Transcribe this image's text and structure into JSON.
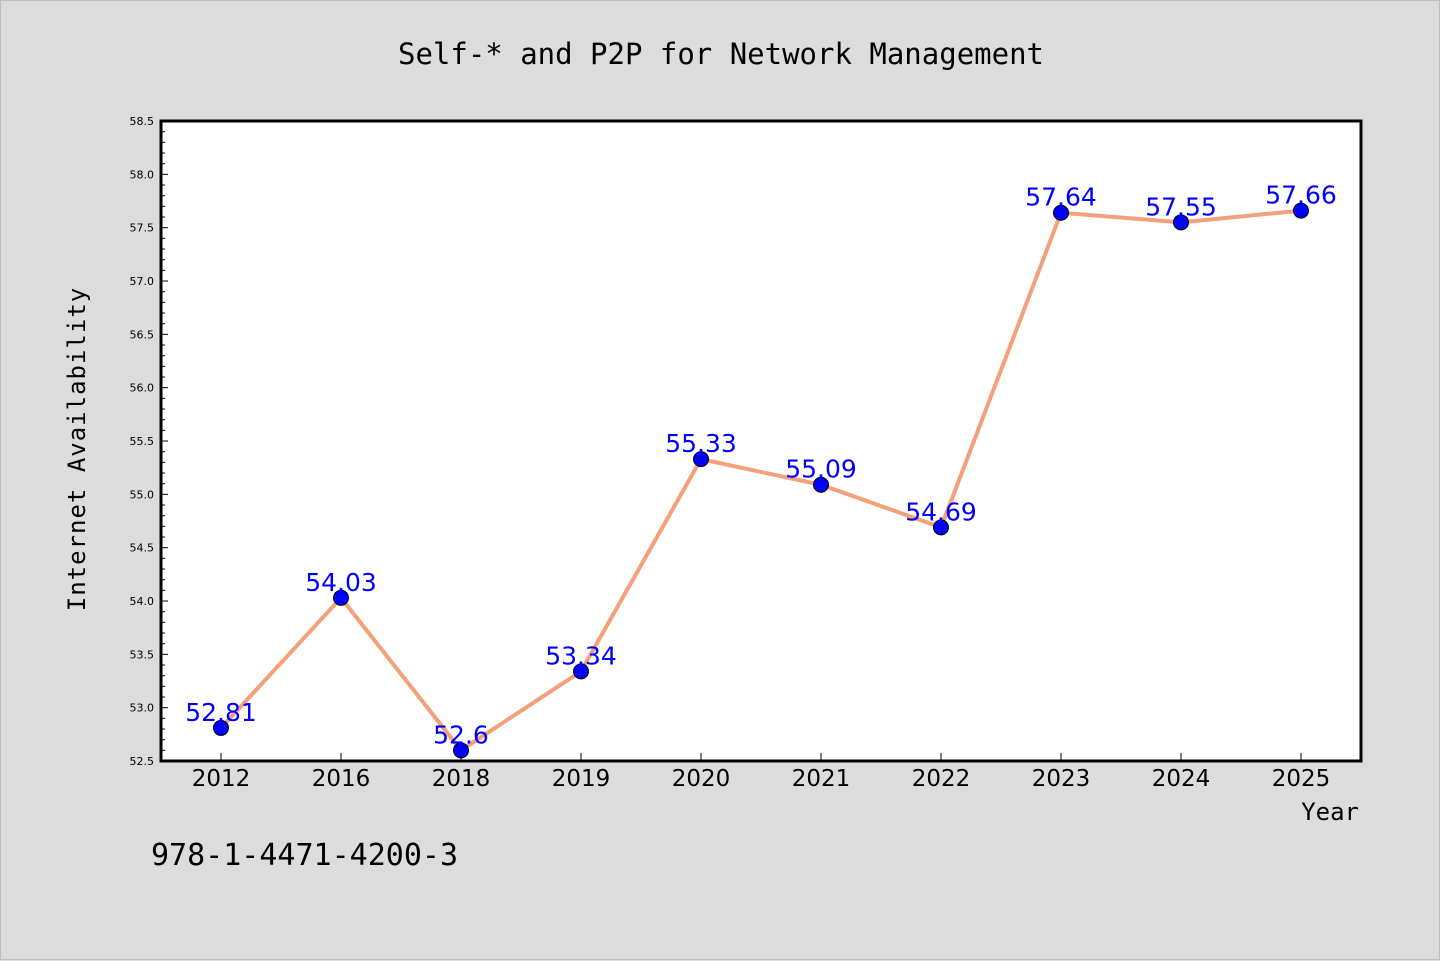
{
  "footnote": "978-1-4471-4200-3",
  "chart_data": {
    "type": "line",
    "title": "Self-* and P2P for Network Management",
    "xlabel": "Year",
    "ylabel": "Internet Availability",
    "categories": [
      "2012",
      "2016",
      "2018",
      "2019",
      "2020",
      "2021",
      "2022",
      "2023",
      "2024",
      "2025"
    ],
    "series": [
      {
        "values": [
          52.81,
          54.03,
          52.6,
          53.34,
          55.33,
          55.09,
          54.69,
          57.64,
          57.55,
          57.66
        ],
        "data_labels": [
          "52.81",
          "54.03",
          "52.6",
          "53.34",
          "55.33",
          "55.09",
          "54.69",
          "57.64",
          "57.55",
          "57.66"
        ],
        "line_color": "#f4a07a",
        "marker_color": "#0000ff"
      }
    ],
    "ylim": [
      52.5,
      58.5
    ],
    "yticks": [
      "52.5",
      "53.0",
      "53.5",
      "54.0",
      "54.5",
      "55.0",
      "55.5",
      "56.0",
      "56.5",
      "57.0",
      "57.5",
      "58.0",
      "58.5"
    ],
    "grid": false,
    "legend": "none",
    "colors": {
      "background": "#dcdcdc",
      "plot_background": "#ffffff",
      "axis": "#000000"
    }
  }
}
